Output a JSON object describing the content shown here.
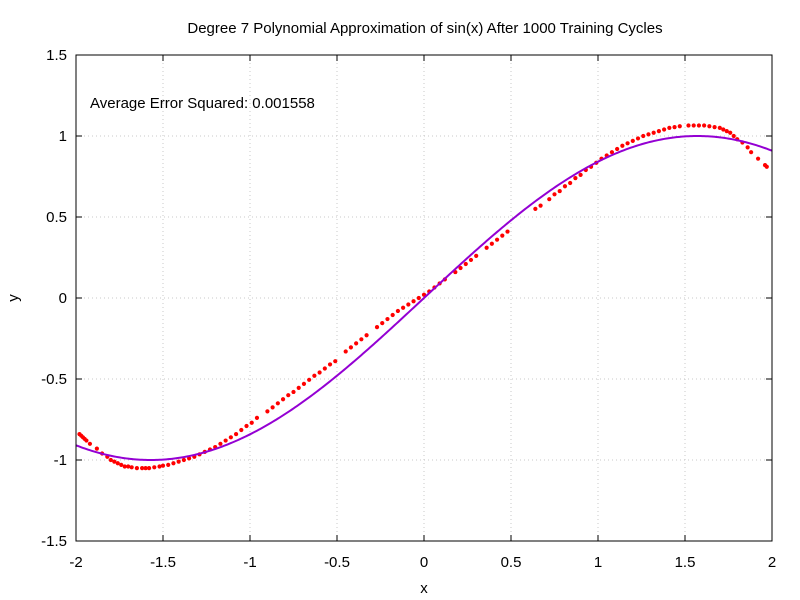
{
  "chart_data": {
    "type": "scatter",
    "title": "Degree 7 Polynomial Approximation of sin(x) After 1000 Training Cycles",
    "xlabel": "x",
    "ylabel": "y",
    "xlim": [
      -2,
      2
    ],
    "ylim": [
      -1.5,
      1.5
    ],
    "x_ticks": [
      -2,
      -1.5,
      -1,
      -0.5,
      0,
      0.5,
      1,
      1.5,
      2
    ],
    "y_ticks": [
      -1.5,
      -1,
      -0.5,
      0,
      0.5,
      1,
      1.5
    ],
    "x_tick_labels": [
      "-2",
      "-1.5",
      "-1",
      "-0.5",
      "0",
      "0.5",
      "1",
      "1.5",
      "2"
    ],
    "y_tick_labels": [
      "-1.5",
      "-1",
      "-0.5",
      "0",
      "0.5",
      "1",
      "1.5"
    ],
    "grid": true,
    "annotation": "Average Error Squared: 0.001558",
    "colors": {
      "points": "#ff0000",
      "curve": "#9400d3",
      "grid": "#c8c8c8"
    },
    "series": [
      {
        "kind": "points",
        "x": [
          -1.98,
          -1.97,
          -1.96,
          -1.95,
          -1.94,
          -1.92,
          -1.88,
          -1.85,
          -1.82,
          -1.8,
          -1.78,
          -1.76,
          -1.74,
          -1.72,
          -1.7,
          -1.68,
          -1.65,
          -1.62,
          -1.6,
          -1.58,
          -1.55,
          -1.52,
          -1.5,
          -1.47,
          -1.44,
          -1.41,
          -1.38,
          -1.35,
          -1.32,
          -1.29,
          -1.26,
          -1.23,
          -1.2,
          -1.17,
          -1.14,
          -1.11,
          -1.08,
          -1.05,
          -1.02,
          -0.99,
          -0.96,
          -0.9,
          -0.87,
          -0.84,
          -0.81,
          -0.78,
          -0.75,
          -0.72,
          -0.69,
          -0.66,
          -0.63,
          -0.6,
          -0.57,
          -0.54,
          -0.51,
          -0.45,
          -0.42,
          -0.39,
          -0.36,
          -0.33,
          -0.27,
          -0.24,
          -0.21,
          -0.18,
          -0.15,
          -0.12,
          -0.09,
          -0.06,
          -0.03,
          0.0,
          0.03,
          0.06,
          0.09,
          0.12,
          0.18,
          0.21,
          0.24,
          0.27,
          0.3,
          0.36,
          0.39,
          0.42,
          0.45,
          0.48,
          0.64,
          0.67,
          0.72,
          0.75,
          0.78,
          0.81,
          0.84,
          0.87,
          0.9,
          0.93,
          0.96,
          0.99,
          1.02,
          1.05,
          1.08,
          1.11,
          1.14,
          1.17,
          1.2,
          1.23,
          1.26,
          1.29,
          1.32,
          1.35,
          1.38,
          1.41,
          1.44,
          1.47,
          1.52,
          1.55,
          1.58,
          1.61,
          1.64,
          1.67,
          1.7,
          1.72,
          1.74,
          1.76,
          1.78,
          1.8,
          1.83,
          1.86,
          1.88,
          1.92,
          1.96,
          1.97
        ],
        "y": [
          -0.84,
          -0.85,
          -0.86,
          -0.87,
          -0.88,
          -0.9,
          -0.93,
          -0.96,
          -0.98,
          -1.0,
          -1.01,
          -1.02,
          -1.03,
          -1.04,
          -1.04,
          -1.045,
          -1.05,
          -1.05,
          -1.05,
          -1.05,
          -1.045,
          -1.04,
          -1.035,
          -1.03,
          -1.02,
          -1.01,
          -1.0,
          -0.99,
          -0.98,
          -0.965,
          -0.95,
          -0.935,
          -0.92,
          -0.9,
          -0.88,
          -0.86,
          -0.84,
          -0.815,
          -0.79,
          -0.77,
          -0.74,
          -0.7,
          -0.675,
          -0.65,
          -0.625,
          -0.6,
          -0.58,
          -0.555,
          -0.53,
          -0.505,
          -0.48,
          -0.46,
          -0.435,
          -0.41,
          -0.39,
          -0.33,
          -0.305,
          -0.28,
          -0.255,
          -0.23,
          -0.18,
          -0.155,
          -0.13,
          -0.105,
          -0.08,
          -0.06,
          -0.04,
          -0.02,
          0.0,
          0.02,
          0.04,
          0.065,
          0.09,
          0.115,
          0.16,
          0.185,
          0.21,
          0.235,
          0.26,
          0.31,
          0.335,
          0.36,
          0.385,
          0.41,
          0.55,
          0.57,
          0.61,
          0.64,
          0.66,
          0.69,
          0.71,
          0.74,
          0.76,
          0.79,
          0.81,
          0.835,
          0.86,
          0.88,
          0.9,
          0.92,
          0.94,
          0.955,
          0.97,
          0.985,
          1.0,
          1.01,
          1.02,
          1.03,
          1.04,
          1.05,
          1.055,
          1.06,
          1.065,
          1.065,
          1.065,
          1.065,
          1.06,
          1.055,
          1.05,
          1.04,
          1.03,
          1.02,
          1.0,
          0.98,
          0.96,
          0.93,
          0.9,
          0.86,
          0.82,
          0.81
        ]
      },
      {
        "kind": "curve",
        "function": "sin(x)"
      }
    ]
  }
}
